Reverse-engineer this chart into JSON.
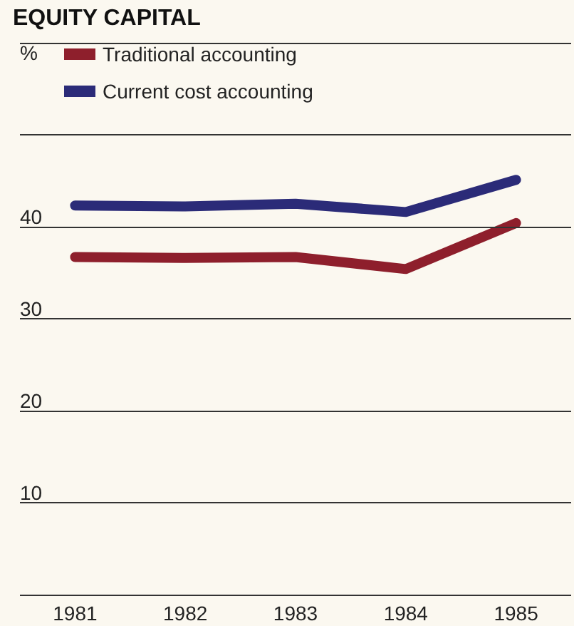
{
  "chart_data": {
    "type": "line",
    "title": "EQUITY CAPITAL",
    "ylabel": "%",
    "categories": [
      "1981",
      "1982",
      "1983",
      "1984",
      "1985"
    ],
    "series": [
      {
        "name": "Traditional accounting",
        "color": "#8e1f2c",
        "values": [
          36.7,
          36.6,
          36.7,
          35.4,
          40.4
        ]
      },
      {
        "name": "Current cost accounting",
        "color": "#2b2b78",
        "values": [
          42.3,
          42.2,
          42.5,
          41.6,
          45.1
        ]
      }
    ],
    "ylim": [
      0,
      60
    ],
    "yticks": [
      {
        "value": 0,
        "label": null
      },
      10,
      20,
      30,
      40,
      {
        "value": 50,
        "label": null
      },
      {
        "value": 60,
        "label": null
      }
    ],
    "grid": "y",
    "legend": "top left",
    "marker": "none",
    "line_style": "solid"
  }
}
